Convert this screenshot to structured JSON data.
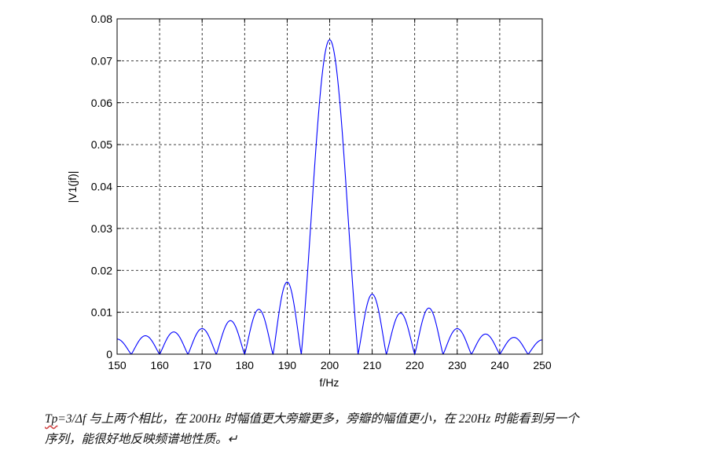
{
  "chart_data": {
    "type": "line",
    "xlabel": "f/Hz",
    "ylabel": "|V1(jf)|",
    "xlim": [
      150,
      250
    ],
    "ylim": [
      0,
      0.08
    ],
    "xticks": [
      "150",
      "160",
      "170",
      "180",
      "190",
      "200",
      "210",
      "220",
      "230",
      "240",
      "250"
    ],
    "yticks": [
      "0",
      "0.01",
      "0.02",
      "0.03",
      "0.04",
      "0.05",
      "0.06",
      "0.07",
      "0.08"
    ],
    "grid": true,
    "line_color": "#0000ff",
    "sinc_peak": 0.075,
    "center_frequency_hz": 200,
    "zero_spacing_hz": 6.667,
    "series": [
      {
        "x": [
          150,
          153.3,
          156.7,
          160,
          163.3,
          166.7,
          170,
          173.3,
          176.7,
          180,
          183.3,
          186.7,
          190,
          193.3,
          196.7,
          200,
          203.3,
          206.7,
          210,
          213.3,
          216.7,
          220,
          223.3,
          226.7,
          230,
          233.3,
          236.7,
          240,
          243.3,
          246.7,
          250
        ],
        "y": [
          0.0036,
          0,
          0.0044,
          0,
          0.0053,
          0,
          0.0061,
          0,
          0.008,
          0,
          0.0107,
          0,
          0.0172,
          0,
          0.0503,
          0.075,
          0.0503,
          0,
          0.0143,
          0,
          0.0098,
          0,
          0.011,
          0,
          0.0061,
          0,
          0.0048,
          0,
          0.004,
          0,
          0.0034
        ]
      }
    ]
  },
  "caption": {
    "symbol": "Tp",
    "line1_rest": "=3/Δf 与上两个相比，在 200Hz 时幅值更大旁瓣更多，旁瓣的幅值更小，在 220Hz 时能看到另一个",
    "line2": "序列，能很好地反映频谱地性质。↵"
  }
}
